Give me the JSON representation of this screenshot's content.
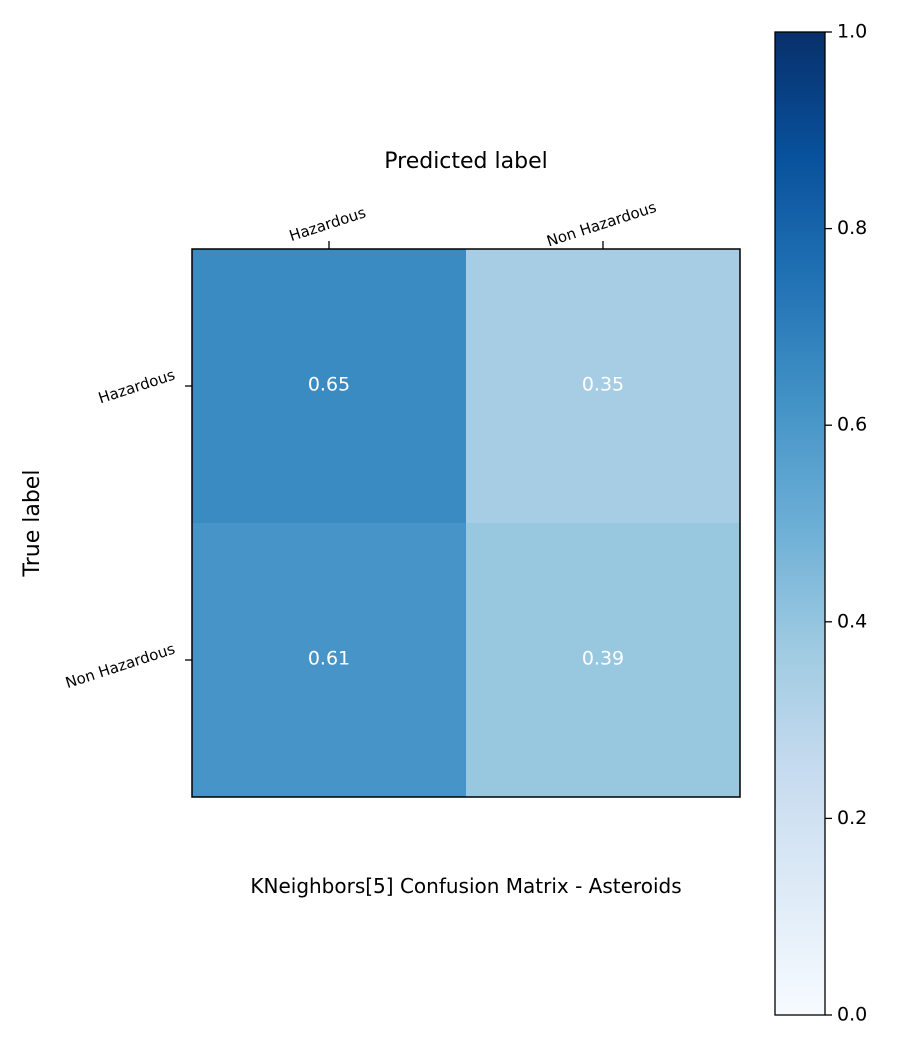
{
  "chart_data": {
    "type": "heatmap",
    "title": "KNeighbors[5]  Confusion Matrix - Asteroids",
    "xlabel": "Predicted label",
    "ylabel": "True label",
    "x_categories": [
      "Hazardous",
      "Non Hazardous"
    ],
    "y_categories": [
      "Hazardous",
      "Non Hazardous"
    ],
    "values": [
      [
        0.65,
        0.35
      ],
      [
        0.61,
        0.39
      ]
    ],
    "value_labels": [
      [
        "0.65",
        "0.35"
      ],
      [
        "0.61",
        "0.39"
      ]
    ],
    "colorbar": {
      "range": [
        0,
        1
      ],
      "ticks": [
        "0.0",
        "0.2",
        "0.4",
        "0.6",
        "0.8",
        "1.0"
      ],
      "colormap": "Blues"
    },
    "grid": false,
    "x_tick_position": "top",
    "value_label_color": "#ffffff"
  }
}
